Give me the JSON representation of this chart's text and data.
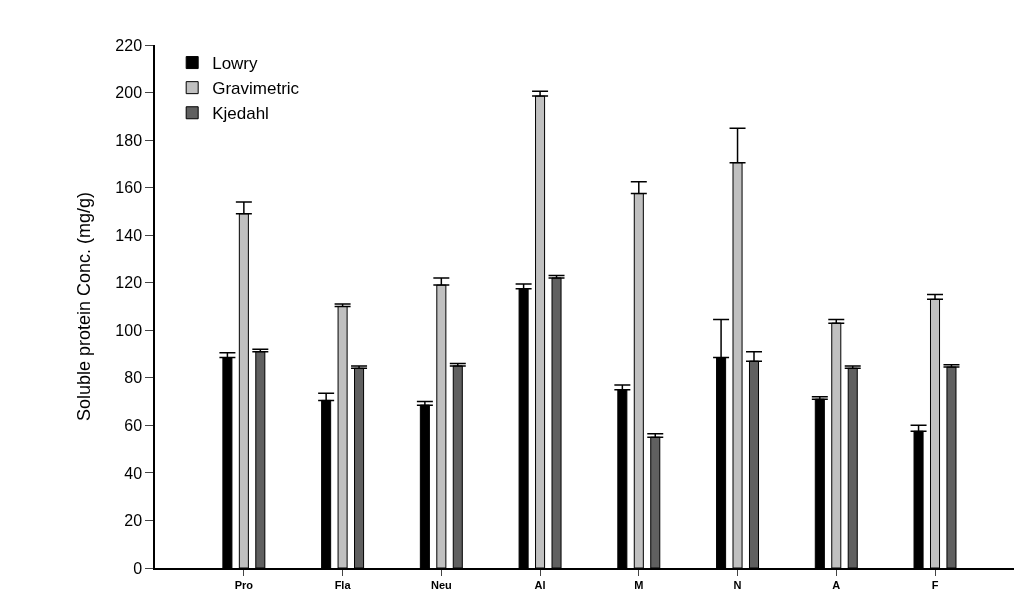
{
  "chart_data": {
    "type": "bar",
    "ylabel": "Soluble protein Conc. (mg/g)",
    "categories": [
      "Pro",
      "Fla",
      "Neu",
      "Al",
      "M",
      "N",
      "A",
      "F"
    ],
    "series": [
      {
        "name": "Lowry",
        "color": "#000000",
        "values": [
          88.5,
          70.5,
          68.5,
          117.5,
          75,
          88.5,
          71,
          57.5
        ],
        "errors": [
          [
            88.5,
            90.5
          ],
          [
            70.5,
            73.5
          ],
          [
            68.5,
            70
          ],
          [
            117.5,
            119.5
          ],
          [
            75,
            77
          ],
          [
            88.5,
            104.5
          ],
          [
            71,
            72
          ],
          [
            57.5,
            60
          ]
        ]
      },
      {
        "name": "Gravimetric",
        "color": "#c0c0c0",
        "values": [
          149,
          110,
          119,
          198.5,
          157.5,
          170.5,
          103,
          113
        ],
        "errors": [
          [
            149,
            154
          ],
          [
            110,
            111
          ],
          [
            119,
            122
          ],
          [
            198.5,
            200.5
          ],
          [
            157.5,
            162.5
          ],
          [
            170.5,
            185
          ],
          [
            103,
            104.5
          ],
          [
            113,
            115
          ]
        ]
      },
      {
        "name": "Kjedahl",
        "color": "#606060",
        "values": [
          91,
          84,
          85,
          122,
          55,
          87,
          84,
          84.5
        ],
        "errors": [
          [
            91,
            92
          ],
          [
            84,
            85
          ],
          [
            85,
            86
          ],
          [
            122,
            123
          ],
          [
            55,
            56.5
          ],
          [
            87,
            91
          ],
          [
            84,
            85
          ],
          [
            84.5,
            85.5
          ]
        ]
      }
    ],
    "ylim": [
      0,
      220
    ],
    "yticks": [
      0,
      20,
      40,
      60,
      80,
      100,
      120,
      140,
      160,
      180,
      200,
      220
    ],
    "legend": "top left"
  }
}
